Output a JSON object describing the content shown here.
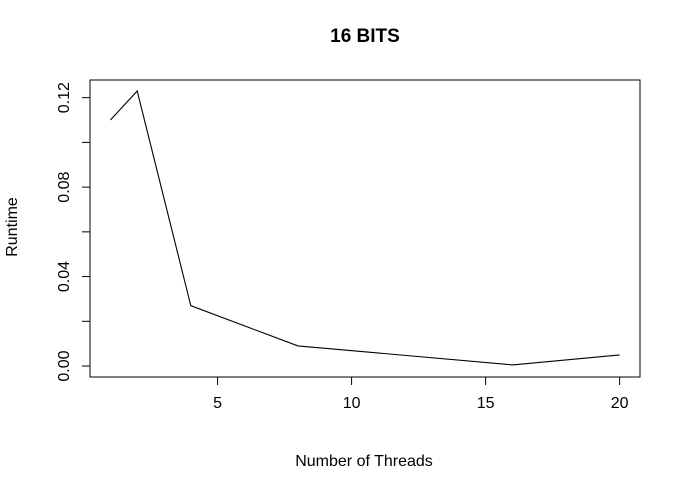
{
  "chart_data": {
    "type": "line",
    "title": "16 BITS",
    "xlabel": "Number of Threads",
    "ylabel": "Runtime",
    "xlim": [
      0.24,
      20.76
    ],
    "ylim": [
      -0.0049,
      0.1279
    ],
    "x_ticks": [
      5,
      10,
      15,
      20
    ],
    "y_ticks": [
      0.0,
      0.04,
      0.08,
      0.12
    ],
    "x_tick_labels": [
      "5",
      "10",
      "15",
      "20"
    ],
    "y_tick_labels": [
      "0.00",
      "0.04",
      "0.08",
      "0.12"
    ],
    "x_minor_ticks": [],
    "y_minor_ticks": [
      0.02,
      0.06,
      0.1
    ],
    "grid": false,
    "legend": "none",
    "series": [
      {
        "x": [
          1,
          2,
          4,
          8,
          16,
          20
        ],
        "values": [
          0.11,
          0.123,
          0.027,
          0.009,
          0.0005,
          0.005
        ],
        "color": "#000000"
      }
    ]
  }
}
